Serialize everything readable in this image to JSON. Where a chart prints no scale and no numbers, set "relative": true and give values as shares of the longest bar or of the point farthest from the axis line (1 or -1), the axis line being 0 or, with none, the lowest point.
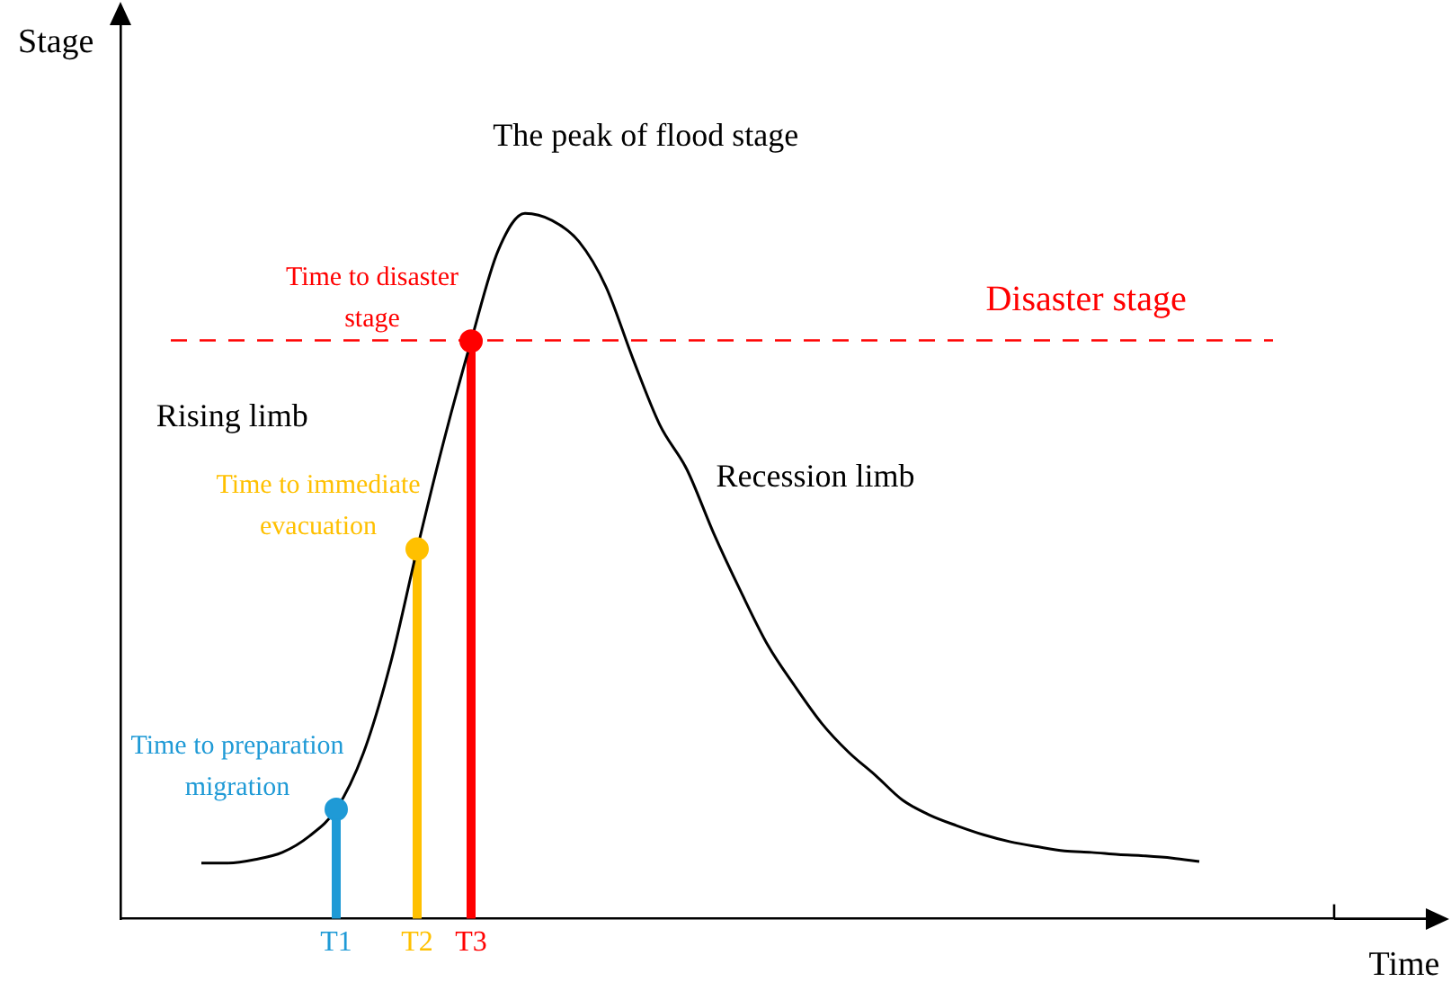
{
  "chart_data": {
    "type": "line",
    "relative": true,
    "xlabel": "Time",
    "ylabel": "Stage",
    "marker": "none",
    "legend": false,
    "grid": false,
    "categories": [
      null,
      null,
      null,
      null,
      null,
      null,
      null,
      null,
      "T1",
      null,
      null,
      "T2",
      null,
      "T3",
      null,
      null,
      null,
      null,
      null,
      null,
      null,
      null,
      null,
      null,
      null,
      null,
      null,
      null,
      null,
      null,
      null,
      null,
      null,
      null,
      null,
      null,
      null,
      null,
      null,
      null,
      null,
      null,
      null,
      null,
      null,
      null
    ],
    "series": [
      {
        "color": "#000000",
        "values": [
          null,
          null,
          null,
          0.079,
          0.079,
          0.084,
          0.094,
          0.117,
          0.155,
          0.234,
          0.36,
          0.524,
          0.679,
          0.819,
          0.947,
          1,
          0.99,
          0.96,
          0.896,
          0.794,
          0.7,
          0.637,
          0.546,
          0.464,
          0.388,
          0.33,
          0.277,
          0.236,
          0.203,
          0.168,
          0.147,
          0.132,
          0.119,
          0.109,
          0.102,
          0.096,
          0.094,
          0.091,
          0.089,
          0.086,
          0.081,
          null,
          null,
          null,
          null,
          null
        ]
      },
      {
        "type": "lollipop",
        "marker": "circle",
        "name": "Time to preparation migration",
        "color": "#1f9ad6",
        "values": [
          null,
          null,
          null,
          null,
          null,
          null,
          null,
          null,
          0.155,
          null,
          null,
          null,
          null,
          null,
          null,
          null,
          null,
          null,
          null,
          null,
          null,
          null,
          null,
          null,
          null,
          null,
          null,
          null,
          null,
          null,
          null,
          null,
          null,
          null,
          null,
          null,
          null,
          null,
          null,
          null,
          null,
          null,
          null,
          null,
          null,
          null
        ]
      },
      {
        "type": "lollipop",
        "marker": "circle",
        "name": "Time to immediate evacuation",
        "color": "#ffc000",
        "values": [
          null,
          null,
          null,
          null,
          null,
          null,
          null,
          null,
          null,
          null,
          null,
          0.524,
          null,
          null,
          null,
          null,
          null,
          null,
          null,
          null,
          null,
          null,
          null,
          null,
          null,
          null,
          null,
          null,
          null,
          null,
          null,
          null,
          null,
          null,
          null,
          null,
          null,
          null,
          null,
          null,
          null,
          null,
          null,
          null,
          null,
          null
        ]
      },
      {
        "type": "lollipop",
        "marker": "circle",
        "name": "Time to disaster stage",
        "color": "#ff0000",
        "values": [
          null,
          null,
          null,
          null,
          null,
          null,
          null,
          null,
          null,
          null,
          null,
          null,
          null,
          0.819,
          null,
          null,
          null,
          null,
          null,
          null,
          null,
          null,
          null,
          null,
          null,
          null,
          null,
          null,
          null,
          null,
          null,
          null,
          null,
          null,
          null,
          null,
          null,
          null,
          null,
          null,
          null,
          null,
          null,
          null,
          null,
          null
        ]
      }
    ],
    "ref_lines": [
      {
        "axis": "y",
        "value": 0.82,
        "label": "Disaster stage",
        "color": "#ff0000",
        "line_style": "dashed"
      }
    ],
    "annotations": [
      "The peak of flood stage",
      "Rising limb",
      "Recession limb"
    ]
  }
}
